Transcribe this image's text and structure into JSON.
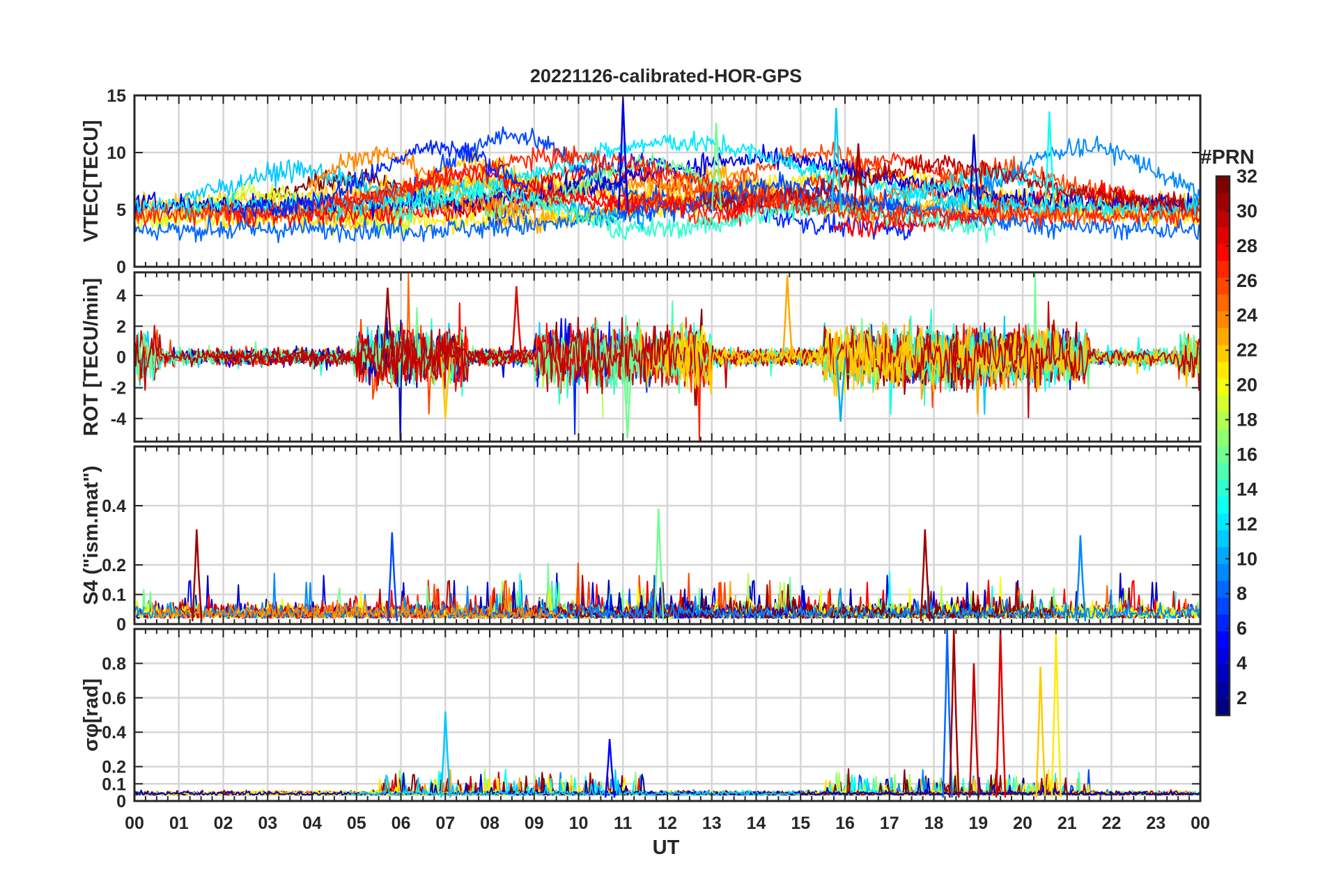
{
  "chart_data": {
    "type": "line",
    "title": "20221126-calibrated-HOR-GPS",
    "xlabel": "UT",
    "x_ticks": [
      "00",
      "01",
      "02",
      "03",
      "04",
      "05",
      "06",
      "07",
      "08",
      "09",
      "10",
      "11",
      "12",
      "13",
      "14",
      "15",
      "16",
      "17",
      "18",
      "19",
      "20",
      "21",
      "22",
      "23",
      "00"
    ],
    "xlim_hours": [
      0,
      24
    ],
    "grid": true,
    "colorbar": {
      "title": "#PRN",
      "ticks": [
        "2",
        "4",
        "6",
        "8",
        "10",
        "12",
        "14",
        "16",
        "18",
        "20",
        "22",
        "24",
        "26",
        "28",
        "30",
        "32"
      ],
      "range": [
        1,
        32
      ],
      "colormap": "jet"
    },
    "panels": [
      {
        "key": "vtec",
        "ylabel": "VTEC[TECU]",
        "ylim": [
          0,
          15
        ],
        "yticks": [
          0,
          5,
          10,
          15
        ],
        "ytick_labels": [
          "0",
          "5",
          "10",
          "15"
        ],
        "series_summary": {
          "baseline_range": [
            2,
            8
          ],
          "peaks": [
            {
              "ut_hour": 11.0,
              "value": 14.8,
              "prn": 4
            },
            {
              "ut_hour": 15.8,
              "value": 13.9,
              "prn": 11
            },
            {
              "ut_hour": 20.6,
              "value": 13.6,
              "prn": 13
            },
            {
              "ut_hour": 13.1,
              "value": 12.6,
              "prn": 16
            },
            {
              "ut_hour": 18.9,
              "value": 11.6,
              "prn": 3
            },
            {
              "ut_hour": 16.3,
              "value": 10.8,
              "prn": 31
            }
          ]
        }
      },
      {
        "key": "rot",
        "ylabel": "ROT [TECU/min]",
        "ylim": [
          -5.5,
          5.5
        ],
        "yticks": [
          -4,
          -2,
          0,
          2,
          4
        ],
        "ytick_labels": [
          "-4",
          "-2",
          "0",
          "2",
          "4"
        ],
        "series_summary": {
          "baseline_range": [
            -1,
            1
          ],
          "extremes": [
            {
              "ut_hour": 14.7,
              "value": 5.3,
              "prn": 23
            },
            {
              "ut_hour": 11.1,
              "value": -5.3,
              "prn": 16
            },
            {
              "ut_hour": 5.7,
              "value": 4.5,
              "prn": 31
            },
            {
              "ut_hour": 8.6,
              "value": 4.6,
              "prn": 29
            },
            {
              "ut_hour": 7.0,
              "value": -4.0,
              "prn": 22
            },
            {
              "ut_hour": 15.9,
              "value": -4.2,
              "prn": 10
            }
          ]
        }
      },
      {
        "key": "s4",
        "ylabel": "S4 (\"ism.mat\")",
        "ylim": [
          0,
          0.6
        ],
        "yticks": [
          0,
          0.1,
          0.2,
          0.4
        ],
        "ytick_labels": [
          "0",
          "0.1",
          "0.2",
          "0.4"
        ],
        "series_summary": {
          "baseline_range": [
            0.01,
            0.12
          ],
          "peaks": [
            {
              "ut_hour": 11.8,
              "value": 0.39,
              "prn": 16
            },
            {
              "ut_hour": 1.4,
              "value": 0.32,
              "prn": 31
            },
            {
              "ut_hour": 17.8,
              "value": 0.32,
              "prn": 31
            },
            {
              "ut_hour": 5.8,
              "value": 0.31,
              "prn": 7
            },
            {
              "ut_hour": 21.3,
              "value": 0.3,
              "prn": 9
            }
          ]
        }
      },
      {
        "key": "sigma_phi",
        "ylabel": "σφ[rad]",
        "ylim": [
          0,
          1.0
        ],
        "yticks": [
          0,
          0.1,
          0.2,
          0.4,
          0.6,
          0.8
        ],
        "ytick_labels": [
          "0",
          "0.1",
          "0.2",
          "0.4",
          "0.6",
          "0.8"
        ],
        "series_summary": {
          "baseline_range": [
            0.02,
            0.06
          ],
          "peaks": [
            {
              "ut_hour": 18.3,
              "value": 1.0,
              "prn": 8
            },
            {
              "ut_hour": 18.45,
              "value": 1.0,
              "prn": 31
            },
            {
              "ut_hour": 19.5,
              "value": 1.0,
              "prn": 29
            },
            {
              "ut_hour": 20.75,
              "value": 0.98,
              "prn": 21
            },
            {
              "ut_hour": 20.4,
              "value": 0.78,
              "prn": 22
            },
            {
              "ut_hour": 18.9,
              "value": 0.8,
              "prn": 30
            },
            {
              "ut_hour": 7.0,
              "value": 0.52,
              "prn": 11
            },
            {
              "ut_hour": 10.7,
              "value": 0.36,
              "prn": 5
            }
          ]
        }
      }
    ]
  }
}
